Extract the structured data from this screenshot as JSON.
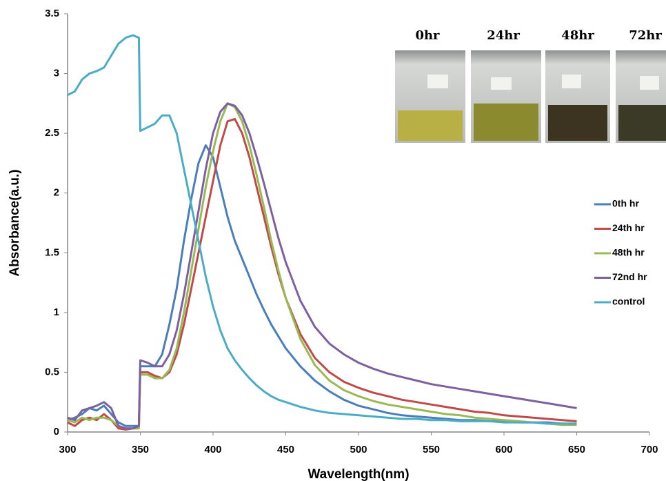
{
  "chart_data": {
    "type": "line",
    "x_label": "Wavelength(nm)",
    "y_label": "Absorbance(a.u.)",
    "xlim": [
      300,
      700
    ],
    "xticks": [
      300,
      350,
      400,
      450,
      500,
      550,
      600,
      650,
      700
    ],
    "ylim": [
      0,
      3.5
    ],
    "yticks": [
      0,
      0.5,
      1,
      1.5,
      2,
      2.5,
      3,
      3.5
    ],
    "grid": false,
    "legend": "right",
    "inset_labels": [
      "0hr",
      "24hr",
      "48hr",
      "72hr"
    ],
    "x": [
      300,
      305,
      310,
      315,
      320,
      325,
      330,
      335,
      340,
      345,
      349,
      350,
      355,
      360,
      365,
      370,
      375,
      380,
      385,
      390,
      395,
      400,
      405,
      410,
      415,
      420,
      425,
      430,
      435,
      440,
      445,
      450,
      460,
      470,
      480,
      490,
      500,
      510,
      520,
      530,
      540,
      550,
      560,
      570,
      580,
      590,
      600,
      610,
      620,
      630,
      640,
      650
    ],
    "series": [
      {
        "name": "0th hr",
        "color": "#4a7ebb",
        "values": [
          0.1,
          0.12,
          0.15,
          0.2,
          0.18,
          0.22,
          0.15,
          0.08,
          0.05,
          0.05,
          0.05,
          0.55,
          0.55,
          0.55,
          0.65,
          0.9,
          1.2,
          1.6,
          1.95,
          2.25,
          2.4,
          2.3,
          2.05,
          1.8,
          1.6,
          1.45,
          1.3,
          1.15,
          1.02,
          0.9,
          0.8,
          0.7,
          0.55,
          0.43,
          0.34,
          0.27,
          0.22,
          0.19,
          0.16,
          0.14,
          0.13,
          0.12,
          0.11,
          0.1,
          0.1,
          0.09,
          0.09,
          0.08,
          0.08,
          0.08,
          0.07,
          0.07
        ]
      },
      {
        "name": "24th hr",
        "color": "#be4b48",
        "values": [
          0.08,
          0.05,
          0.1,
          0.12,
          0.1,
          0.15,
          0.1,
          0.03,
          0.02,
          0.03,
          0.03,
          0.5,
          0.5,
          0.47,
          0.45,
          0.5,
          0.65,
          0.9,
          1.2,
          1.5,
          1.8,
          2.1,
          2.4,
          2.6,
          2.62,
          2.5,
          2.3,
          2.05,
          1.8,
          1.55,
          1.32,
          1.12,
          0.82,
          0.62,
          0.5,
          0.42,
          0.37,
          0.33,
          0.3,
          0.27,
          0.25,
          0.23,
          0.21,
          0.19,
          0.17,
          0.16,
          0.14,
          0.13,
          0.12,
          0.11,
          0.1,
          0.09
        ]
      },
      {
        "name": "48th hr",
        "color": "#98b954",
        "values": [
          0.1,
          0.08,
          0.12,
          0.1,
          0.12,
          0.12,
          0.1,
          0.05,
          0.03,
          0.03,
          0.03,
          0.48,
          0.48,
          0.45,
          0.45,
          0.52,
          0.7,
          1.0,
          1.35,
          1.7,
          2.05,
          2.35,
          2.6,
          2.75,
          2.72,
          2.6,
          2.4,
          2.15,
          1.88,
          1.6,
          1.35,
          1.12,
          0.78,
          0.56,
          0.43,
          0.35,
          0.3,
          0.26,
          0.23,
          0.21,
          0.19,
          0.17,
          0.15,
          0.14,
          0.12,
          0.11,
          0.1,
          0.09,
          0.08,
          0.07,
          0.06,
          0.06
        ]
      },
      {
        "name": "72nd hr",
        "color": "#7d60a0",
        "values": [
          0.12,
          0.1,
          0.18,
          0.2,
          0.22,
          0.25,
          0.2,
          0.05,
          0.03,
          0.03,
          0.05,
          0.6,
          0.58,
          0.55,
          0.55,
          0.65,
          0.85,
          1.15,
          1.5,
          1.85,
          2.2,
          2.5,
          2.68,
          2.75,
          2.73,
          2.65,
          2.5,
          2.3,
          2.08,
          1.85,
          1.62,
          1.42,
          1.1,
          0.88,
          0.74,
          0.65,
          0.58,
          0.53,
          0.49,
          0.46,
          0.43,
          0.4,
          0.38,
          0.36,
          0.34,
          0.32,
          0.3,
          0.28,
          0.26,
          0.24,
          0.22,
          0.2
        ]
      },
      {
        "name": "control",
        "color": "#4bacc6",
        "values": [
          2.82,
          2.85,
          2.95,
          3.0,
          3.02,
          3.05,
          3.15,
          3.25,
          3.3,
          3.32,
          3.3,
          2.52,
          2.55,
          2.58,
          2.65,
          2.65,
          2.5,
          2.2,
          1.9,
          1.6,
          1.3,
          1.05,
          0.85,
          0.7,
          0.6,
          0.52,
          0.45,
          0.39,
          0.34,
          0.3,
          0.27,
          0.25,
          0.21,
          0.18,
          0.16,
          0.15,
          0.14,
          0.13,
          0.12,
          0.11,
          0.11,
          0.1,
          0.1,
          0.09,
          0.09,
          0.09,
          0.08,
          0.08,
          0.08,
          0.07,
          0.07,
          0.07
        ]
      }
    ]
  }
}
